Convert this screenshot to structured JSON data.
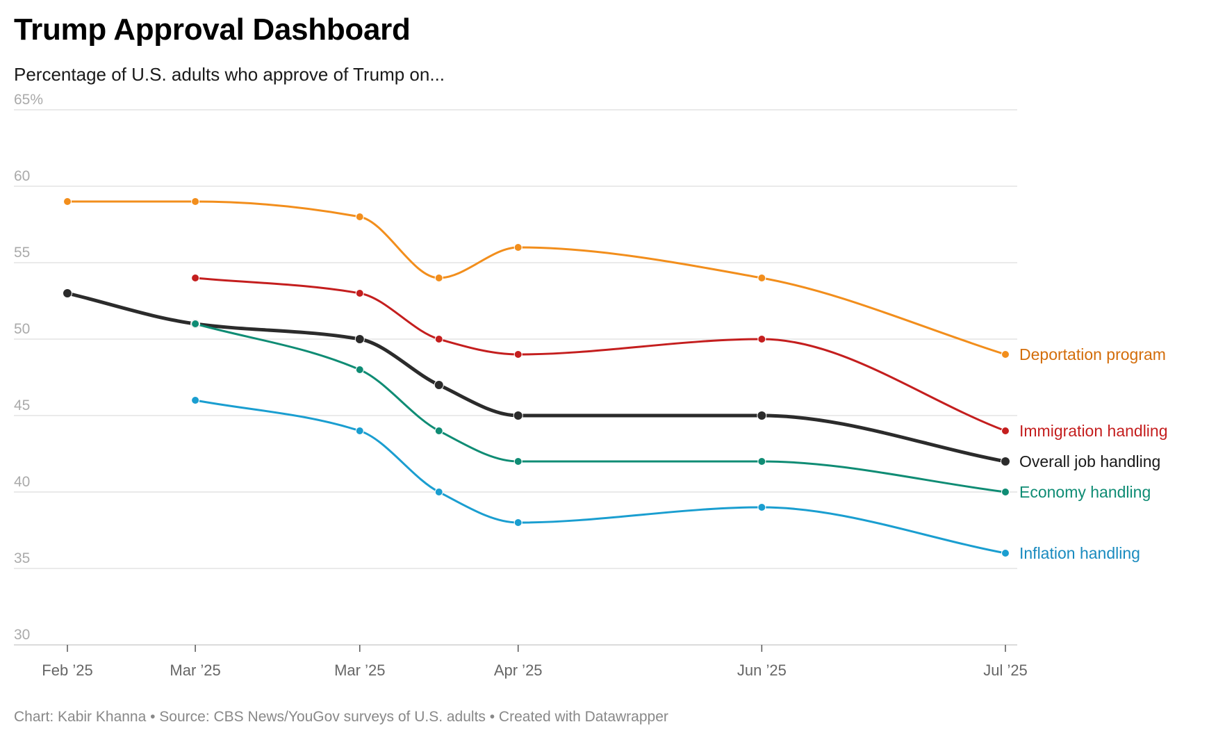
{
  "header": {
    "title": "Trump Approval Dashboard",
    "subtitle": "Percentage of U.S. adults who approve of Trump on..."
  },
  "footer": {
    "credit": "Chart: Kabir Khanna • Source: CBS News/YouGov surveys of U.S. adults • Created with Datawrapper"
  },
  "chart_data": {
    "type": "line",
    "title": "Trump Approval Dashboard",
    "subtitle": "Percentage of U.S. adults who approve of Trump on...",
    "xlabel": "",
    "ylabel": "",
    "ylim": [
      30,
      65
    ],
    "yticks": [
      30,
      35,
      40,
      45,
      50,
      55,
      60,
      65
    ],
    "ytick_labels": [
      "30",
      "35",
      "40",
      "45",
      "50",
      "55",
      "60",
      "65%"
    ],
    "x": [
      "2025-02-09",
      "2025-03-02",
      "2025-03-29",
      "2025-04-11",
      "2025-04-24",
      "2025-06-03",
      "2025-07-13"
    ],
    "xticks": [
      {
        "date": "2025-02-09",
        "label": "Feb ’25"
      },
      {
        "date": "2025-03-02",
        "label": "Mar ’25"
      },
      {
        "date": "2025-03-29",
        "label": "Mar ’25"
      },
      {
        "date": "2025-04-24",
        "label": "Apr ’25"
      },
      {
        "date": "2025-06-03",
        "label": "Jun ’25"
      },
      {
        "date": "2025-07-13",
        "label": "Jul ’25"
      }
    ],
    "grid": true,
    "legend": "direct labels at right",
    "series": [
      {
        "name": "Deportation program",
        "color": "#f28e1c",
        "label_color": "#d36d0a",
        "width": 3,
        "values": [
          59,
          59,
          58,
          54,
          56,
          54,
          49
        ]
      },
      {
        "name": "Immigration handling",
        "color": "#c41e1e",
        "label_color": "#c41e1e",
        "width": 3,
        "values": [
          null,
          54,
          53,
          50,
          49,
          50,
          44
        ]
      },
      {
        "name": "Overall job handling",
        "color": "#2b2b2b",
        "label_color": "#1a1a1a",
        "width": 5,
        "values": [
          53,
          51,
          50,
          47,
          45,
          45,
          42
        ]
      },
      {
        "name": "Economy handling",
        "color": "#0f8c74",
        "label_color": "#0f8c74",
        "width": 3,
        "values": [
          null,
          51,
          48,
          44,
          42,
          42,
          40
        ]
      },
      {
        "name": "Inflation handling",
        "color": "#1a9ed0",
        "label_color": "#1a8bbf",
        "width": 3,
        "values": [
          null,
          46,
          44,
          40,
          38,
          39,
          36
        ]
      }
    ]
  }
}
